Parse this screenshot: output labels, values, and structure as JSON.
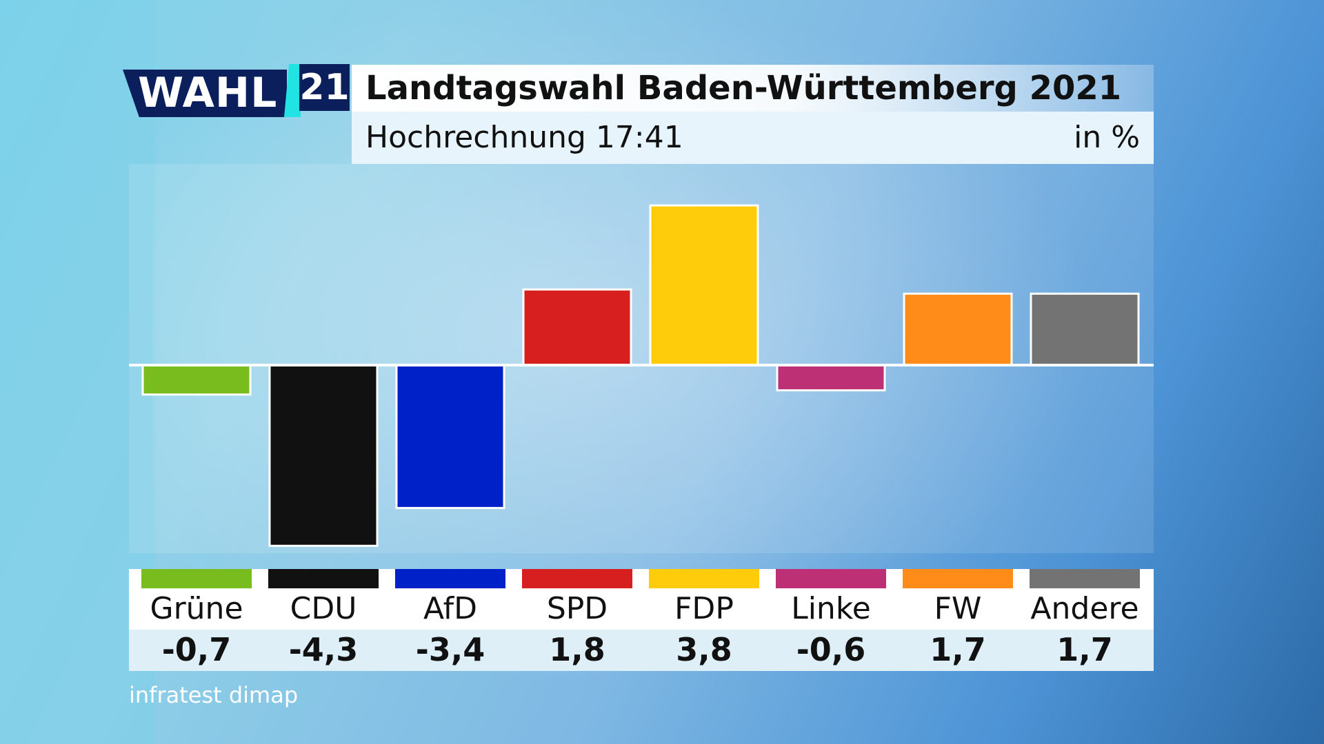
{
  "logo": {
    "wahl": "WAHL",
    "year": "21"
  },
  "header": {
    "title": "Landtagswahl Baden-Württemberg 2021",
    "subtitle": "Hochrechnung 17:41",
    "unit": "in %"
  },
  "source": "infratest dimap",
  "chart_data": {
    "type": "bar",
    "categories": [
      "Grüne",
      "CDU",
      "AfD",
      "SPD",
      "FDP",
      "Linke",
      "FW",
      "Andere"
    ],
    "values": [
      -0.7,
      -4.3,
      -3.4,
      1.8,
      3.8,
      -0.6,
      1.7,
      1.7
    ],
    "value_labels": [
      "-0,7",
      "-4,3",
      "-3,4",
      "1,8",
      "3,8",
      "-0,6",
      "1,7",
      "1,7"
    ],
    "colors": [
      "#78bc1e",
      "#111111",
      "#0021c8",
      "#d71f1f",
      "#ffcc0b",
      "#be3075",
      "#ff8c18",
      "#737373"
    ],
    "title": "Landtagswahl Baden-Württemberg 2021",
    "subtitle": "Hochrechnung 17:41",
    "unit": "in %",
    "ylim": [
      -4.5,
      4.0
    ],
    "grid": false,
    "baseline": 0
  }
}
